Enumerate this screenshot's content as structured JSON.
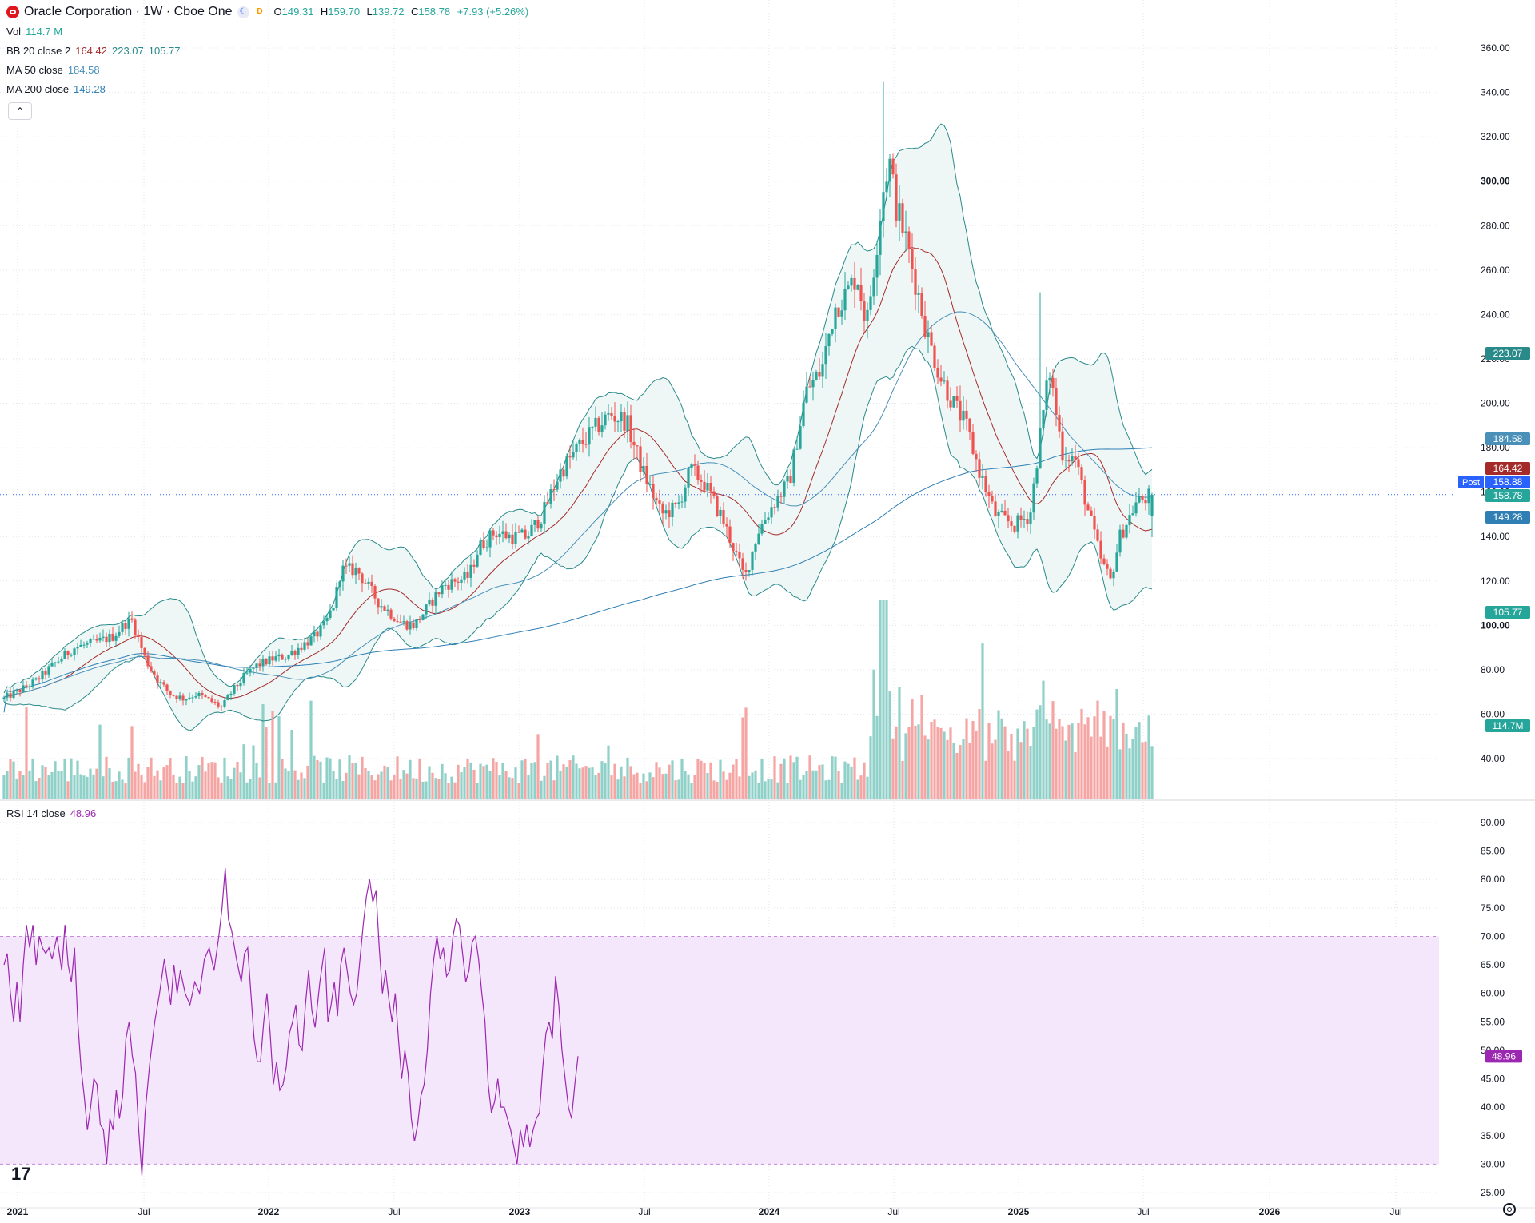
{
  "header": {
    "symbol_title": "Oracle Corporation · 1W · Cboe One",
    "open_label": "O",
    "open": "149.31",
    "high_label": "H",
    "high": "159.70",
    "low_label": "L",
    "low": "139.72",
    "close_label": "C",
    "close": "158.78",
    "change": "+7.93 (+5.26%)",
    "icons": [
      "oracle-logo",
      "moon-icon",
      "dividend-d-icon"
    ]
  },
  "indicators": {
    "vol": {
      "label": "Vol",
      "value": "114.7 M"
    },
    "bb": {
      "label": "BB 20 close 2",
      "basis": "164.42",
      "upper": "223.07",
      "lower": "105.77"
    },
    "ma50": {
      "label": "MA 50 close",
      "value": "184.58"
    },
    "ma200": {
      "label": "MA 200 close",
      "value": "149.28"
    },
    "rsi": {
      "label": "RSI 14 close",
      "value": "48.96"
    }
  },
  "colors": {
    "up": "#26a69a",
    "down": "#ef5350",
    "up_vol": "#8fd0c8",
    "down_vol": "#f5a5a3",
    "bb_basis": "#a52a2a",
    "bb_band": "#2a8a8a",
    "bb_fill": "#eef7f6",
    "ma50": "#4a90b8",
    "ma200": "#2f7fb5",
    "rsi_line": "#9c27b0",
    "rsi_fill": "#f4e6fb"
  },
  "chart_data": {
    "type": "candlestick",
    "timeframe": "1W",
    "price_axis": {
      "min": 30,
      "max": 360,
      "ticks": [
        40,
        60,
        80,
        100,
        120,
        140,
        160,
        180,
        200,
        220,
        240,
        260,
        280,
        300,
        320,
        340,
        360
      ],
      "bold_ticks": [
        100,
        300
      ]
    },
    "rsi_axis": {
      "min": 25,
      "max": 90,
      "ticks": [
        25,
        30,
        35,
        40,
        45,
        50,
        55,
        60,
        65,
        70,
        75,
        80,
        85,
        90
      ],
      "band": [
        30,
        70
      ]
    },
    "time_axis": [
      "2021",
      "Jul",
      "2022",
      "Jul",
      "2023",
      "Jul",
      "2024",
      "Jul",
      "2025",
      "Jul",
      "2026",
      "Jul"
    ],
    "price_labels": [
      {
        "name": "upper",
        "value": "223.07",
        "y": 223.07,
        "color": "#2a8a8a"
      },
      {
        "name": "ma50",
        "value": "184.58",
        "y": 184.58,
        "color": "#4a90b8"
      },
      {
        "name": "basis",
        "value": "164.42",
        "y": 164.42,
        "color": "#a52a2a"
      },
      {
        "name": "post",
        "tag": "Post",
        "value": "158.88",
        "y": 158.88,
        "color": "#2962ff"
      },
      {
        "name": "close",
        "value": "158.78",
        "y": 158.78,
        "color": "#26a69a"
      },
      {
        "name": "ma200",
        "value": "149.28",
        "y": 149.28,
        "color": "#2f7fb5"
      },
      {
        "name": "lower",
        "value": "105.77",
        "y": 105.77,
        "color": "#26a69a"
      },
      {
        "name": "vol",
        "value": "114.7M",
        "y": 54.5,
        "color": "#26a69a"
      }
    ],
    "rsi_label": {
      "value": "48.96",
      "y": 48.96
    },
    "price_anchors": [
      [
        0,
        67
      ],
      [
        8,
        70
      ],
      [
        20,
        75
      ],
      [
        32,
        83
      ],
      [
        44,
        90
      ],
      [
        56,
        92
      ],
      [
        68,
        95
      ],
      [
        76,
        101
      ],
      [
        80,
        102
      ],
      [
        88,
        85
      ],
      [
        96,
        75
      ],
      [
        104,
        69
      ],
      [
        112,
        67
      ],
      [
        120,
        69
      ],
      [
        126,
        67
      ],
      [
        136,
        63
      ],
      [
        142,
        70
      ],
      [
        150,
        77
      ],
      [
        158,
        82
      ],
      [
        168,
        85
      ],
      [
        176,
        86
      ],
      [
        184,
        90
      ],
      [
        194,
        95
      ],
      [
        200,
        100
      ],
      [
        206,
        110
      ],
      [
        210,
        125
      ],
      [
        220,
        125
      ],
      [
        234,
        110
      ],
      [
        248,
        101
      ],
      [
        256,
        100
      ],
      [
        264,
        108
      ],
      [
        274,
        118
      ],
      [
        282,
        120
      ],
      [
        290,
        122
      ],
      [
        296,
        135
      ],
      [
        306,
        142
      ],
      [
        316,
        140
      ],
      [
        326,
        140
      ],
      [
        336,
        150
      ],
      [
        346,
        168
      ],
      [
        358,
        180
      ],
      [
        368,
        188
      ],
      [
        378,
        195
      ],
      [
        388,
        192
      ],
      [
        398,
        170
      ],
      [
        410,
        150
      ],
      [
        420,
        153
      ],
      [
        428,
        170
      ],
      [
        436,
        165
      ],
      [
        448,
        148
      ],
      [
        456,
        133
      ],
      [
        462,
        121
      ],
      [
        470,
        142
      ],
      [
        480,
        155
      ],
      [
        490,
        165
      ],
      [
        500,
        205
      ],
      [
        510,
        215
      ],
      [
        518,
        243
      ],
      [
        526,
        250
      ],
      [
        532,
        258
      ],
      [
        538,
        235
      ],
      [
        544,
        270
      ],
      [
        548,
        295
      ],
      [
        552,
        310
      ],
      [
        556,
        290
      ],
      [
        562,
        275
      ],
      [
        570,
        250
      ],
      [
        576,
        230
      ],
      [
        584,
        212
      ],
      [
        592,
        200
      ],
      [
        600,
        190
      ],
      [
        608,
        170
      ],
      [
        618,
        150
      ],
      [
        630,
        145
      ],
      [
        640,
        150
      ],
      [
        646,
        185
      ],
      [
        652,
        215
      ],
      [
        660,
        178
      ],
      [
        668,
        175
      ],
      [
        676,
        152
      ],
      [
        684,
        130
      ],
      [
        690,
        120
      ],
      [
        696,
        140
      ],
      [
        706,
        155
      ],
      [
        716,
        158.78
      ]
    ],
    "rsi_anchors": [
      [
        0,
        65
      ],
      [
        4,
        67
      ],
      [
        8,
        60
      ],
      [
        12,
        55
      ],
      [
        16,
        62
      ],
      [
        20,
        55
      ],
      [
        24,
        65
      ],
      [
        28,
        72
      ],
      [
        32,
        68
      ],
      [
        36,
        72
      ],
      [
        40,
        65
      ],
      [
        44,
        70
      ],
      [
        48,
        68
      ],
      [
        52,
        67
      ],
      [
        56,
        68
      ],
      [
        60,
        66
      ],
      [
        66,
        70
      ],
      [
        72,
        64
      ],
      [
        76,
        72
      ],
      [
        80,
        65
      ],
      [
        84,
        62
      ],
      [
        88,
        68
      ],
      [
        92,
        55
      ],
      [
        96,
        47
      ],
      [
        100,
        42
      ],
      [
        104,
        36
      ],
      [
        108,
        40
      ],
      [
        112,
        45
      ],
      [
        116,
        44
      ],
      [
        120,
        37
      ],
      [
        124,
        36
      ],
      [
        128,
        30
      ],
      [
        132,
        38
      ],
      [
        136,
        36
      ],
      [
        140,
        43
      ],
      [
        144,
        38
      ],
      [
        148,
        42
      ],
      [
        152,
        52
      ],
      [
        156,
        55
      ],
      [
        160,
        49
      ],
      [
        164,
        46
      ],
      [
        168,
        36
      ],
      [
        172,
        28
      ],
      [
        176,
        39
      ],
      [
        182,
        48
      ],
      [
        188,
        55
      ],
      [
        194,
        60
      ],
      [
        200,
        66
      ],
      [
        204,
        62
      ],
      [
        208,
        58
      ],
      [
        212,
        65
      ],
      [
        216,
        60
      ],
      [
        220,
        64
      ],
      [
        226,
        60
      ],
      [
        232,
        58
      ],
      [
        238,
        62
      ],
      [
        244,
        60
      ],
      [
        250,
        66
      ],
      [
        256,
        68
      ],
      [
        262,
        64
      ],
      [
        268,
        70
      ],
      [
        272,
        75
      ],
      [
        276,
        82
      ],
      [
        280,
        73
      ],
      [
        284,
        71
      ],
      [
        290,
        66
      ],
      [
        296,
        62
      ],
      [
        300,
        67
      ],
      [
        304,
        68
      ],
      [
        308,
        60
      ],
      [
        312,
        52
      ],
      [
        316,
        48
      ],
      [
        320,
        48
      ],
      [
        324,
        55
      ],
      [
        328,
        60
      ],
      [
        332,
        53
      ],
      [
        336,
        44
      ],
      [
        340,
        48
      ],
      [
        344,
        43
      ],
      [
        348,
        44
      ],
      [
        352,
        47
      ],
      [
        356,
        53
      ],
      [
        360,
        55
      ],
      [
        364,
        58
      ],
      [
        368,
        51
      ],
      [
        372,
        50
      ],
      [
        376,
        58
      ],
      [
        380,
        64
      ],
      [
        384,
        57
      ],
      [
        388,
        54
      ],
      [
        394,
        62
      ],
      [
        400,
        68
      ],
      [
        404,
        55
      ],
      [
        408,
        58
      ],
      [
        412,
        62
      ],
      [
        416,
        56
      ],
      [
        420,
        65
      ],
      [
        424,
        68
      ],
      [
        428,
        64
      ],
      [
        432,
        60
      ],
      [
        436,
        58
      ],
      [
        440,
        60
      ],
      [
        444,
        66
      ],
      [
        448,
        72
      ],
      [
        452,
        77
      ],
      [
        456,
        80
      ],
      [
        460,
        76
      ],
      [
        464,
        78
      ],
      [
        468,
        68
      ],
      [
        472,
        60
      ],
      [
        476,
        64
      ],
      [
        480,
        59
      ],
      [
        484,
        55
      ],
      [
        488,
        60
      ],
      [
        492,
        52
      ],
      [
        496,
        45
      ],
      [
        500,
        50
      ],
      [
        504,
        46
      ],
      [
        508,
        38
      ],
      [
        512,
        34
      ],
      [
        516,
        37
      ],
      [
        520,
        42
      ],
      [
        524,
        44
      ],
      [
        528,
        50
      ],
      [
        532,
        60
      ],
      [
        536,
        66
      ],
      [
        540,
        70
      ],
      [
        544,
        66
      ],
      [
        548,
        68
      ],
      [
        552,
        63
      ],
      [
        556,
        64
      ],
      [
        560,
        70
      ],
      [
        564,
        73
      ],
      [
        568,
        72
      ],
      [
        572,
        67
      ],
      [
        576,
        62
      ],
      [
        580,
        64
      ],
      [
        584,
        69
      ],
      [
        588,
        70
      ],
      [
        592,
        66
      ],
      [
        596,
        60
      ],
      [
        600,
        55
      ],
      [
        604,
        44
      ],
      [
        608,
        39
      ],
      [
        612,
        41
      ],
      [
        616,
        45
      ],
      [
        620,
        40
      ],
      [
        624,
        40
      ],
      [
        628,
        38
      ],
      [
        632,
        36
      ],
      [
        636,
        33
      ],
      [
        640,
        30
      ],
      [
        644,
        36
      ],
      [
        648,
        33
      ],
      [
        652,
        37
      ],
      [
        656,
        33
      ],
      [
        660,
        36
      ],
      [
        664,
        38
      ],
      [
        668,
        39
      ],
      [
        672,
        47
      ],
      [
        676,
        53
      ],
      [
        680,
        55
      ],
      [
        684,
        52
      ],
      [
        688,
        63
      ],
      [
        692,
        58
      ],
      [
        696,
        50
      ],
      [
        700,
        45
      ],
      [
        704,
        40
      ],
      [
        708,
        38
      ],
      [
        712,
        44
      ],
      [
        716,
        48.96
      ]
    ]
  }
}
